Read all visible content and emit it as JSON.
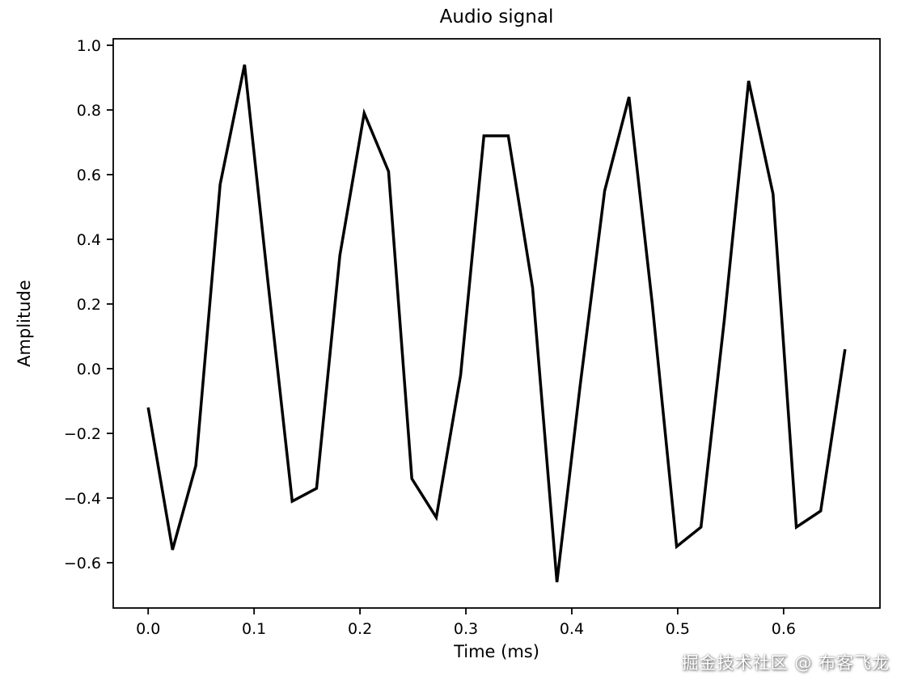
{
  "chart_data": {
    "type": "line",
    "title": "Audio signal",
    "xlabel": "Time (ms)",
    "ylabel": "Amplitude",
    "x": [
      0.0,
      0.023,
      0.045,
      0.068,
      0.091,
      0.113,
      0.136,
      0.159,
      0.181,
      0.204,
      0.227,
      0.249,
      0.272,
      0.295,
      0.317,
      0.34,
      0.363,
      0.386,
      0.408,
      0.431,
      0.454,
      0.476,
      0.499,
      0.522,
      0.544,
      0.567,
      0.59,
      0.612,
      0.635,
      0.658
    ],
    "y": [
      -0.12,
      -0.56,
      -0.3,
      0.57,
      0.94,
      0.27,
      -0.41,
      -0.37,
      0.35,
      0.79,
      0.61,
      -0.34,
      -0.46,
      -0.02,
      0.72,
      0.72,
      0.25,
      -0.66,
      -0.05,
      0.55,
      0.84,
      0.2,
      -0.55,
      -0.49,
      0.15,
      0.89,
      0.54,
      -0.49,
      -0.44,
      0.06
    ],
    "xlim": [
      -0.033,
      0.691
    ],
    "ylim": [
      -0.74,
      1.02
    ],
    "xticks": {
      "values": [
        0.0,
        0.1,
        0.2,
        0.3,
        0.4,
        0.5,
        0.6
      ],
      "labels": [
        "0.0",
        "0.1",
        "0.2",
        "0.3",
        "0.4",
        "0.5",
        "0.6"
      ]
    },
    "yticks": {
      "values": [
        -0.6,
        -0.4,
        -0.2,
        0.0,
        0.2,
        0.4,
        0.6,
        0.8,
        1.0
      ],
      "labels": [
        "−0.6",
        "−0.4",
        "−0.2",
        "0.0",
        "0.2",
        "0.4",
        "0.6",
        "0.8",
        "1.0"
      ]
    },
    "grid": false,
    "line_color": "#000000",
    "line_width": 3.5
  },
  "watermark": {
    "text": "掘金技术社区 @ 布客飞龙"
  }
}
